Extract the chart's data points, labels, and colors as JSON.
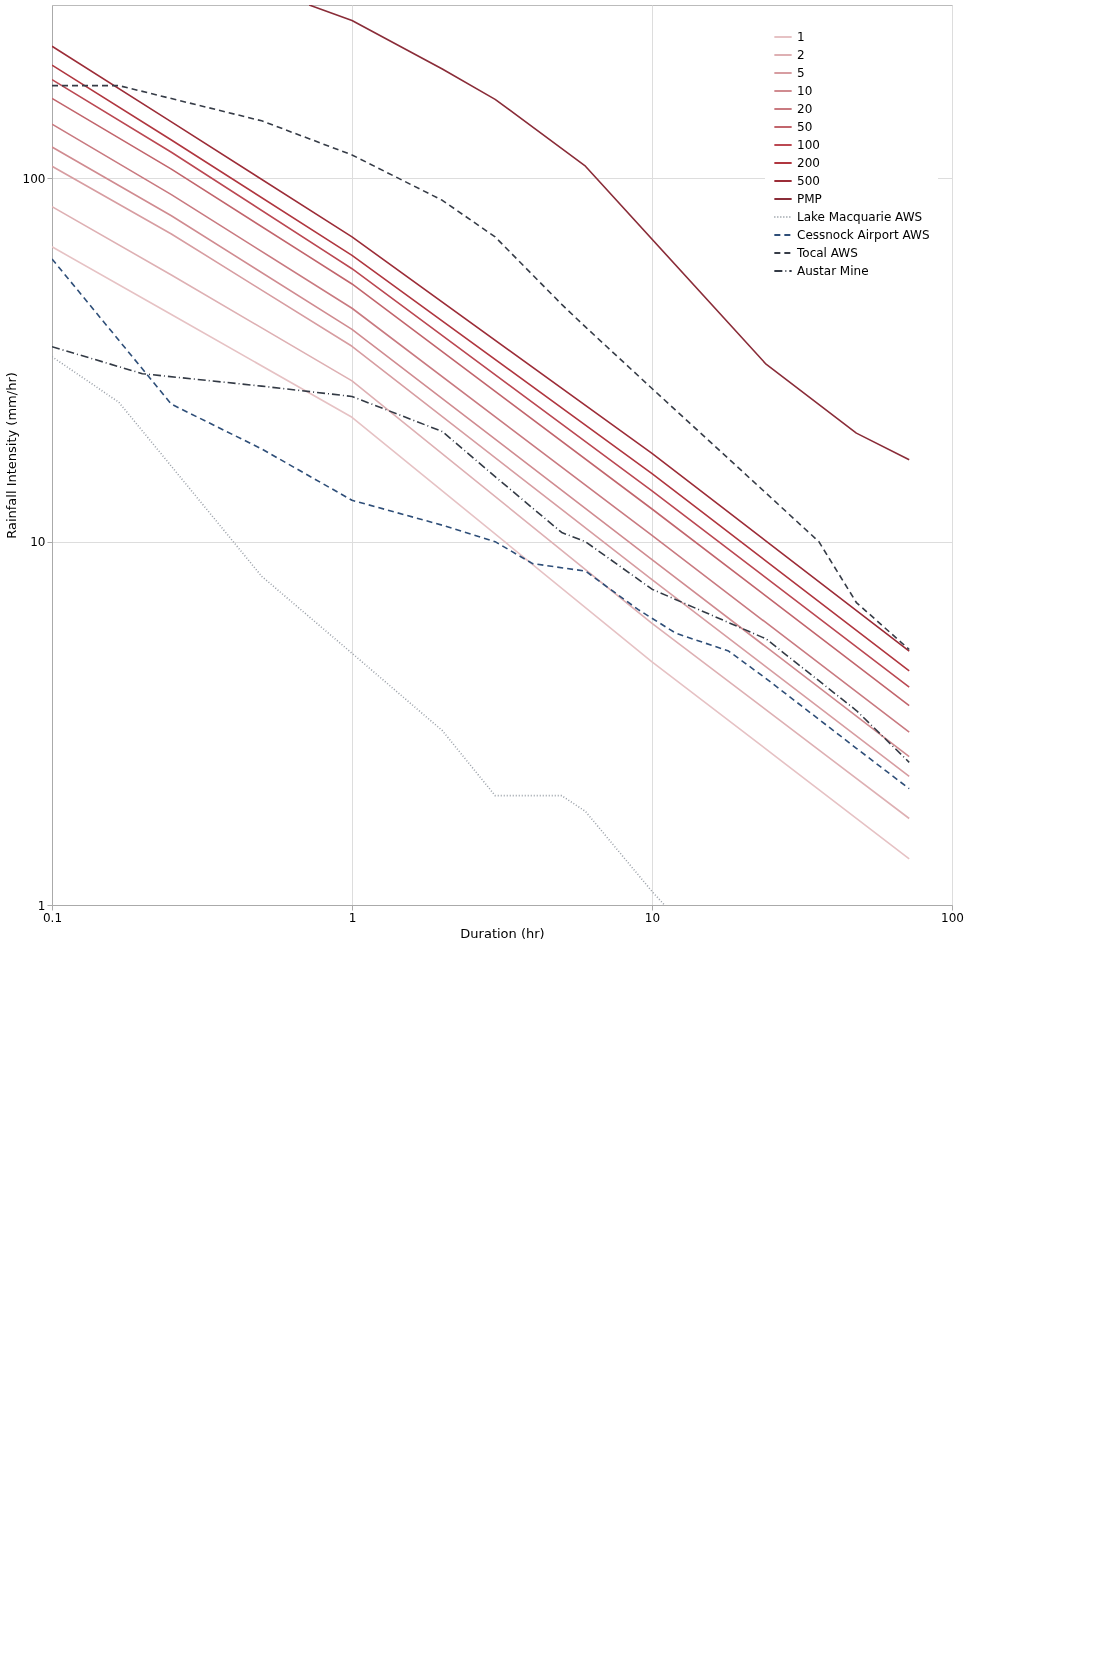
{
  "chart_data": {
    "type": "line",
    "xlabel": "Duration (hr)",
    "ylabel": "Rainfall Intensity (mm/hr)",
    "log": "xy",
    "xlim": [
      0.1,
      100
    ],
    "ylim": [
      1,
      300
    ],
    "xticks": [
      0.1,
      1,
      10,
      100
    ],
    "yticks": [
      1,
      10,
      100
    ],
    "grid": true,
    "legend": "top right",
    "marker": "none",
    "series": [
      {
        "name": "1",
        "color": "#e6c2c4",
        "line_style": "solid",
        "x": [
          0.1,
          0.25,
          1,
          10,
          72
        ],
        "values": [
          64.8,
          42.2,
          22.0,
          4.67,
          1.34
        ]
      },
      {
        "name": "2",
        "color": "#deb0b3",
        "line_style": "solid",
        "x": [
          0.1,
          0.25,
          1,
          10,
          72
        ],
        "values": [
          83.6,
          54.2,
          27.7,
          5.96,
          1.73
        ]
      },
      {
        "name": "5",
        "color": "#d79da1",
        "line_style": "solid",
        "x": [
          0.1,
          0.25,
          1,
          10,
          72
        ],
        "values": [
          108,
          70.3,
          34.5,
          7.86,
          2.26
        ]
      },
      {
        "name": "10",
        "color": "#d08b90",
        "line_style": "solid",
        "x": [
          0.1,
          0.25,
          1,
          10,
          72
        ],
        "values": [
          122,
          78.9,
          38.4,
          8.93,
          2.56
        ]
      },
      {
        "name": "20",
        "color": "#c97a80",
        "line_style": "solid",
        "x": [
          0.1,
          0.25,
          1,
          10,
          72
        ],
        "values": [
          141,
          90.2,
          43.9,
          10.4,
          2.99
        ]
      },
      {
        "name": "50",
        "color": "#c2656c",
        "line_style": "solid",
        "x": [
          0.1,
          0.25,
          1,
          10,
          72
        ],
        "values": [
          166,
          106,
          51.2,
          12.3,
          3.54
        ]
      },
      {
        "name": "100",
        "color": "#bb4852",
        "line_style": "solid",
        "x": [
          0.1,
          0.25,
          1,
          10,
          72
        ],
        "values": [
          187,
          118,
          56.4,
          13.8,
          3.98
        ]
      },
      {
        "name": "200",
        "color": "#b0363f",
        "line_style": "solid",
        "x": [
          0.1,
          0.25,
          1,
          10,
          72
        ],
        "values": [
          205,
          127.5,
          61.4,
          15.4,
          4.41
        ]
      },
      {
        "name": "500",
        "color": "#9c2c37",
        "line_style": "solid",
        "x": [
          0.1,
          0.25,
          1,
          10,
          72
        ],
        "values": [
          231,
          143,
          69.0,
          17.5,
          5.0
        ]
      },
      {
        "name": "PMP",
        "color": "#8a2c38",
        "line_style": "solid",
        "x": [
          0.72,
          1,
          2,
          3,
          6,
          24,
          48,
          72
        ],
        "values": [
          300,
          272,
          200,
          165,
          108,
          30.8,
          19.9,
          16.8
        ]
      },
      {
        "name": "Lake Macquarie AWS",
        "color": "#9aa0a8",
        "line_style": "dotted",
        "x": [
          0.1,
          0.167,
          0.5,
          1,
          2,
          3,
          5,
          6,
          10,
          11
        ],
        "values": [
          32.3,
          24.2,
          8.03,
          4.93,
          3.02,
          2.0,
          2.0,
          1.81,
          1.09,
          1.0
        ]
      },
      {
        "name": "Cessnock Airport AWS",
        "color": "#2e4e78",
        "line_style": "dashed",
        "x": [
          0.1,
          0.25,
          0.5,
          1,
          2,
          3,
          4,
          6,
          9,
          12,
          18,
          24,
          48,
          72
        ],
        "values": [
          60,
          23.9,
          18.0,
          13.0,
          11.1,
          10.0,
          8.7,
          8.3,
          6.5,
          5.6,
          5.0,
          4.2,
          2.7,
          2.09
        ]
      },
      {
        "name": "Tocal AWS",
        "color": "#363c47",
        "line_style": "dashed",
        "x": [
          0.1,
          0.167,
          0.5,
          1,
          2,
          3,
          5,
          6,
          10,
          12,
          24,
          36,
          48,
          72
        ],
        "values": [
          180,
          180,
          144,
          116,
          87,
          69,
          45,
          39,
          26.4,
          23,
          13.6,
          10,
          6.8,
          5.05
        ]
      },
      {
        "name": "Austar Mine",
        "color": "#333a45",
        "line_style": "dashdot",
        "x": [
          0.1,
          0.2,
          0.5,
          1,
          2,
          3,
          5,
          6,
          10,
          24,
          48,
          72
        ],
        "values": [
          34.4,
          29.0,
          26.8,
          25.1,
          20.1,
          15.1,
          10.6,
          10.0,
          7.4,
          5.4,
          3.43,
          2.47
        ]
      }
    ]
  }
}
